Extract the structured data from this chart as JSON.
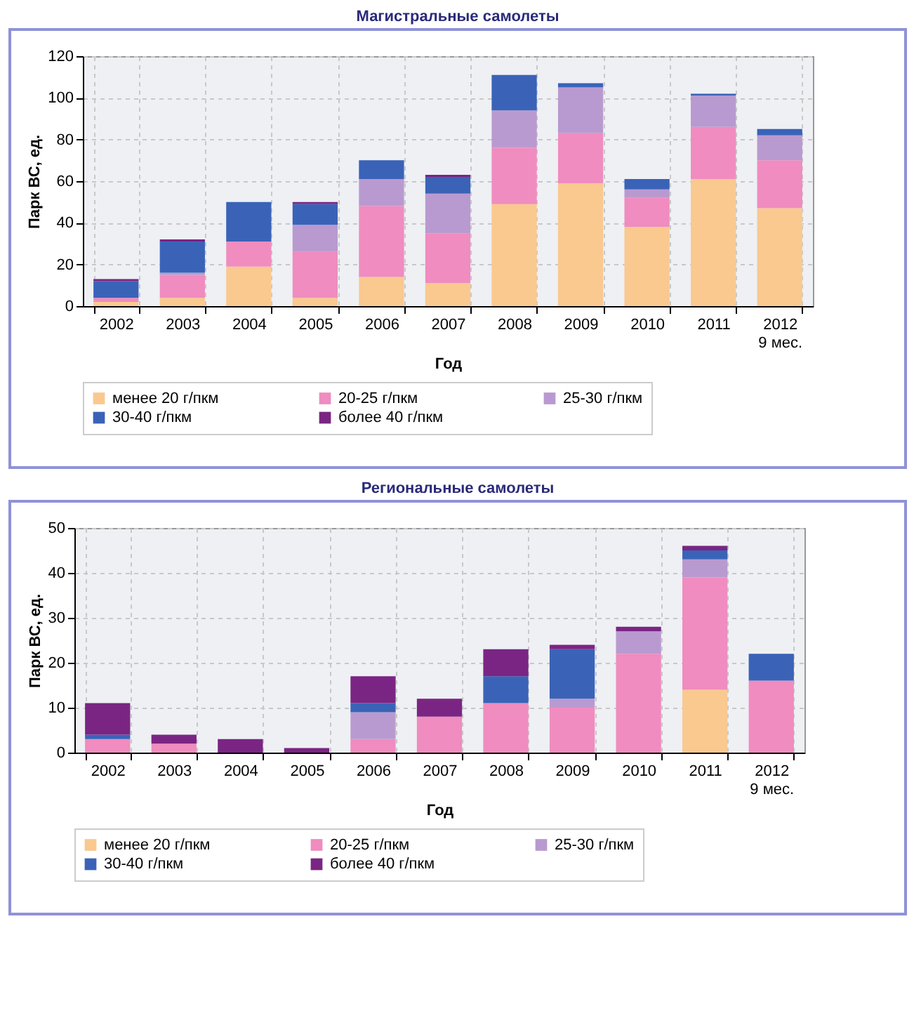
{
  "chart_data": [
    {
      "type": "bar",
      "title": "Магистральные самолеты",
      "xlabel": "Год",
      "ylabel": "Парк ВС, ед.",
      "stacked": true,
      "grid": true,
      "legend": "bottom",
      "categories": [
        "2002",
        "2003",
        "2004",
        "2005",
        "2006",
        "2007",
        "2008",
        "2009",
        "2010",
        "2011",
        "2012\n9 мес."
      ],
      "ylim": [
        0,
        120
      ],
      "yticks": [
        0,
        20,
        40,
        60,
        80,
        100,
        120
      ],
      "series": [
        {
          "name": "менее 20 г/пкм",
          "color": "#f9c98f",
          "values": [
            2,
            4,
            19,
            4,
            14,
            11,
            49,
            59,
            38,
            61,
            47
          ]
        },
        {
          "name": "20-25 г/пкм",
          "color": "#f08cbf",
          "values": [
            2,
            11,
            12,
            22,
            34,
            24,
            27,
            24,
            14,
            25,
            23
          ]
        },
        {
          "name": "25-30 г/пкм",
          "color": "#b99ad0",
          "values": [
            0,
            1,
            0,
            13,
            13,
            19,
            18,
            22,
            4,
            15,
            12
          ]
        },
        {
          "name": "30-40 г/пкм",
          "color": "#3a63b8",
          "values": [
            8,
            15,
            19,
            10,
            9,
            8,
            17,
            2,
            5,
            1,
            3
          ]
        },
        {
          "name": "более 40 г/пкм",
          "color": "#7a2583",
          "values": [
            1,
            1,
            0,
            1,
            0,
            1,
            0,
            0,
            0,
            0,
            0
          ]
        }
      ]
    },
    {
      "type": "bar",
      "title": "Региональные самолеты",
      "xlabel": "Год",
      "ylabel": "Парк ВС, ед.",
      "stacked": true,
      "grid": true,
      "legend": "bottom",
      "categories": [
        "2002",
        "2003",
        "2004",
        "2005",
        "2006",
        "2007",
        "2008",
        "2009",
        "2010",
        "2011",
        "2012\n9 мес."
      ],
      "ylim": [
        0,
        50
      ],
      "yticks": [
        0,
        10,
        20,
        30,
        40,
        50
      ],
      "series": [
        {
          "name": "менее 20 г/пкм",
          "color": "#f9c98f",
          "values": [
            0,
            0,
            0,
            0,
            0,
            0,
            0,
            0,
            0,
            14,
            0
          ]
        },
        {
          "name": "20-25 г/пкм",
          "color": "#f08cbf",
          "values": [
            3,
            2,
            0,
            0,
            3,
            8,
            11,
            10,
            22,
            25,
            16
          ]
        },
        {
          "name": "25-30 г/пкм",
          "color": "#b99ad0",
          "values": [
            0,
            0,
            0,
            0,
            6,
            0,
            0,
            2,
            5,
            4,
            0
          ]
        },
        {
          "name": "30-40 г/пкм",
          "color": "#3a63b8",
          "values": [
            1,
            0,
            0,
            0,
            2,
            0,
            6,
            11,
            0,
            2,
            6
          ]
        },
        {
          "name": "более 40 г/пкм",
          "color": "#7a2583",
          "values": [
            7,
            2,
            3,
            1,
            6,
            4,
            6,
            1,
            1,
            1,
            0
          ]
        }
      ]
    }
  ]
}
